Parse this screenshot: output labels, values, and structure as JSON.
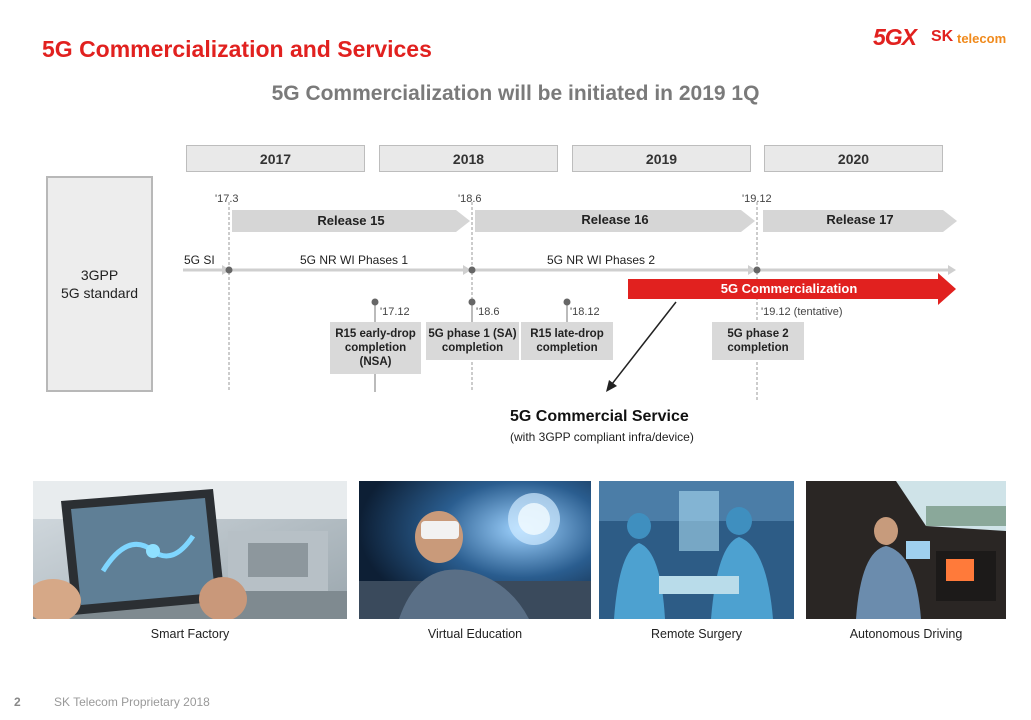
{
  "slide": {
    "title": "5G Commercialization and Services",
    "subtitle": "5G Commercialization will be initiated in 2019 1Q",
    "page_number": "2",
    "footer": "SK Telecom Proprietary 2018"
  },
  "logo": {
    "mark": "5GX",
    "sk": "SK",
    "telecom": "telecom"
  },
  "timeline": {
    "years": [
      "2017",
      "2018",
      "2019",
      "2020"
    ],
    "left_box": {
      "line1": "3GPP",
      "line2": "5G standard"
    },
    "ticks": {
      "t1": "'17.3",
      "t2": "'18.6",
      "t3": "'19.12"
    },
    "releases": [
      "Release 15",
      "Release 16",
      "Release 17"
    ],
    "si_label": "5G SI",
    "phase1_label": "5G NR WI Phases 1",
    "phase2_label": "5G NR WI Phases 2",
    "commercialization_label": "5G Commercialization",
    "milestones": [
      {
        "date": "'17.12",
        "line1": "R15 early-drop",
        "line2": "completion",
        "line3": "(NSA)"
      },
      {
        "date": "'18.6",
        "line1": "5G phase 1 (SA)",
        "line2": "completion"
      },
      {
        "date": "'18.12",
        "line1": "R15 late-drop",
        "line2": "completion"
      },
      {
        "date": "'19.12 (tentative)",
        "line1": "5G phase 2",
        "line2": "completion"
      }
    ]
  },
  "service": {
    "title": "5G Commercial Service",
    "subtitle": "(with 3GPP compliant infra/device)"
  },
  "use_cases": [
    "Smart Factory",
    "Virtual Education",
    "Remote Surgery",
    "Autonomous Driving"
  ],
  "colors": {
    "accent_red": "#e1211f",
    "arrow_gray": "#d6d6d6",
    "box_gray": "#d9d9d9"
  }
}
